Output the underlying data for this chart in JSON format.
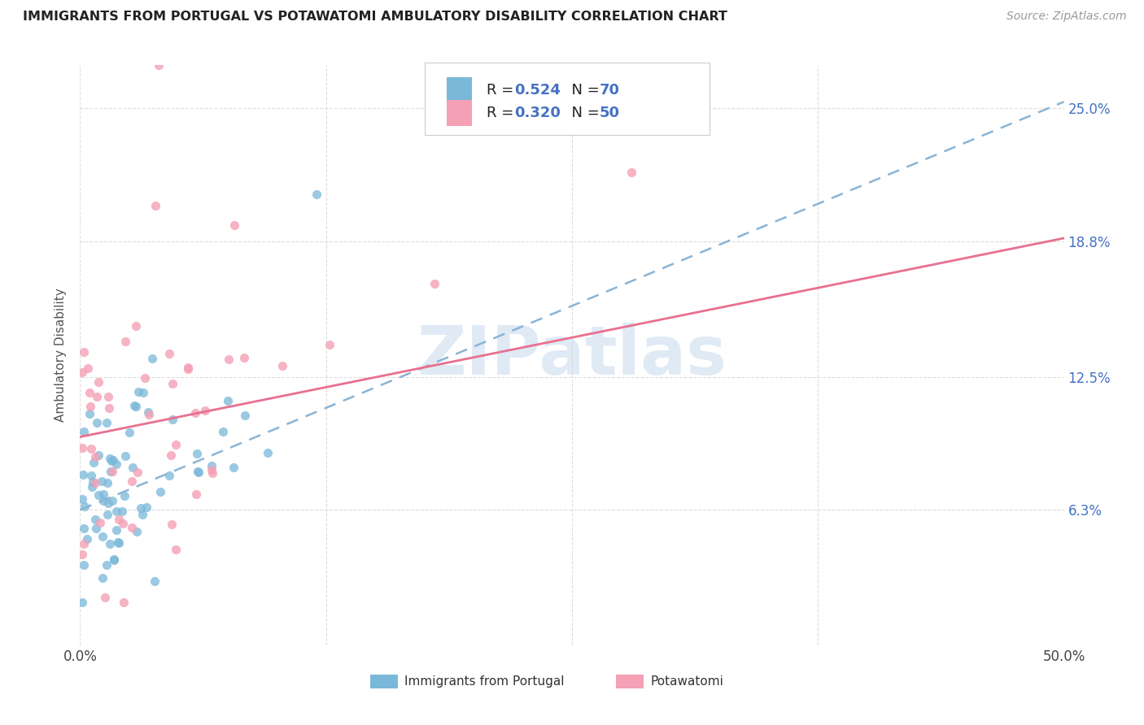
{
  "title": "IMMIGRANTS FROM PORTUGAL VS POTAWATOMI AMBULATORY DISABILITY CORRELATION CHART",
  "source": "Source: ZipAtlas.com",
  "ylabel": "Ambulatory Disability",
  "yticks": [
    "6.3%",
    "12.5%",
    "18.8%",
    "25.0%"
  ],
  "ytick_vals": [
    0.063,
    0.125,
    0.188,
    0.25
  ],
  "xlim": [
    0.0,
    0.5
  ],
  "ylim": [
    0.0,
    0.27
  ],
  "R_blue": 0.524,
  "N_blue": 70,
  "R_pink": 0.32,
  "N_pink": 50,
  "color_blue": "#7ab8d9",
  "color_pink": "#f4a0b5",
  "color_line_blue": "#8ab4d4",
  "color_line_pink": "#e87090",
  "color_text_stat": "#4472C4",
  "color_text_dark": "#222222",
  "watermark_text": "ZIPatlas",
  "watermark_color": "#c5d9ed",
  "legend_label1": "Immigrants from Portugal",
  "legend_label2": "Potawatomi",
  "grid_color": "#dddddd",
  "blue_line_intercept": 0.063,
  "blue_line_slope": 0.38,
  "pink_line_intercept": 0.097,
  "pink_line_slope": 0.185
}
